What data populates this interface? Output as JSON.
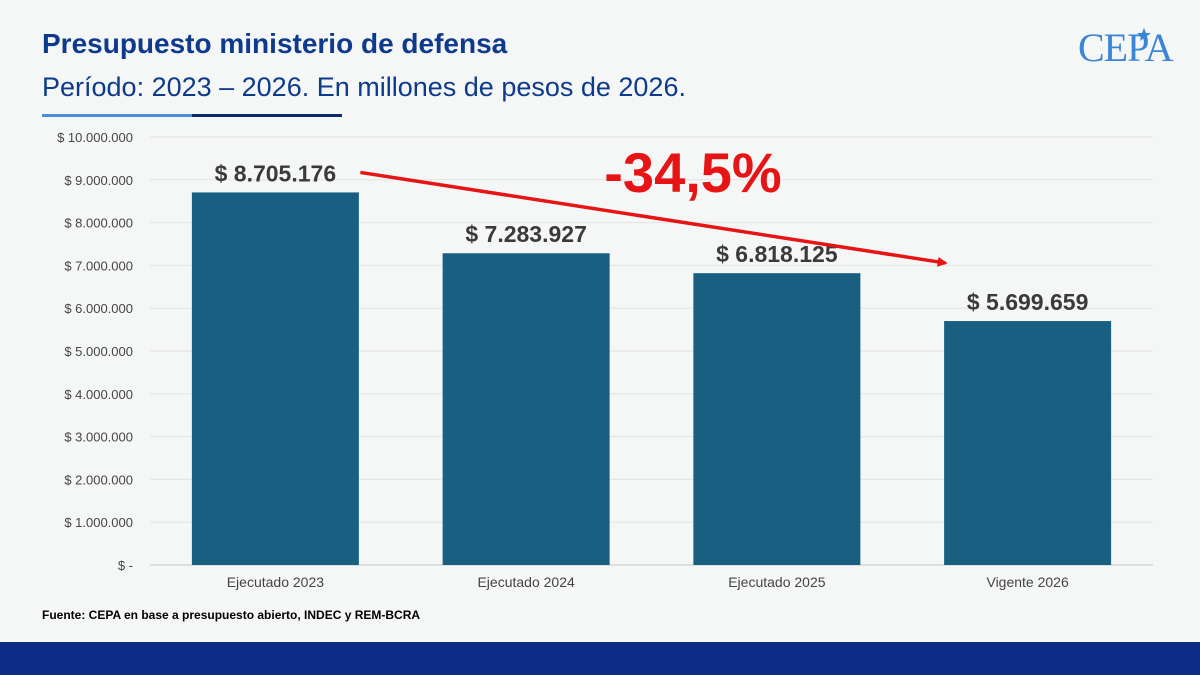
{
  "header": {
    "title": "Presupuesto ministerio de defensa",
    "subtitle": "Período: 2023 – 2026. En millones de pesos de 2026.",
    "logo_text": "CEPA"
  },
  "source": "Fuente: CEPA en base a presupuesto  abierto, INDEC y REM-BCRA",
  "colors": {
    "bar": "#195f82",
    "title": "#0d3a8c",
    "arrow": "#e61414",
    "footer": "#0d2c86",
    "logo": "#3a86d6"
  },
  "chart_data": {
    "type": "bar",
    "categories": [
      "Ejecutado 2023",
      "Ejecutado 2024",
      "Ejecutado 2025",
      "Vigente 2026"
    ],
    "values": [
      8705176,
      7283927,
      6818125,
      5699659
    ],
    "data_labels": [
      "$ 8.705.176",
      "$ 7.283.927",
      "$ 6.818.125",
      "$ 5.699.659"
    ],
    "ylim": [
      0,
      10000000
    ],
    "yticks": [
      {
        "value": 0,
        "label": "$ -"
      },
      {
        "value": 1000000,
        "label": "$ 1.000.000"
      },
      {
        "value": 2000000,
        "label": "$ 2.000.000"
      },
      {
        "value": 3000000,
        "label": "$ 3.000.000"
      },
      {
        "value": 4000000,
        "label": "$ 4.000.000"
      },
      {
        "value": 5000000,
        "label": "$ 5.000.000"
      },
      {
        "value": 6000000,
        "label": "$ 6.000.000"
      },
      {
        "value": 7000000,
        "label": "$ 7.000.000"
      },
      {
        "value": 8000000,
        "label": "$ 8.000.000"
      },
      {
        "value": 9000000,
        "label": "$ 9.000.000"
      },
      {
        "value": 10000000,
        "label": "$ 10.000.000"
      }
    ],
    "grid": true,
    "annotation": {
      "text": "-34,5%",
      "from_category": "Ejecutado 2023",
      "to_category": "Vigente 2026"
    }
  }
}
